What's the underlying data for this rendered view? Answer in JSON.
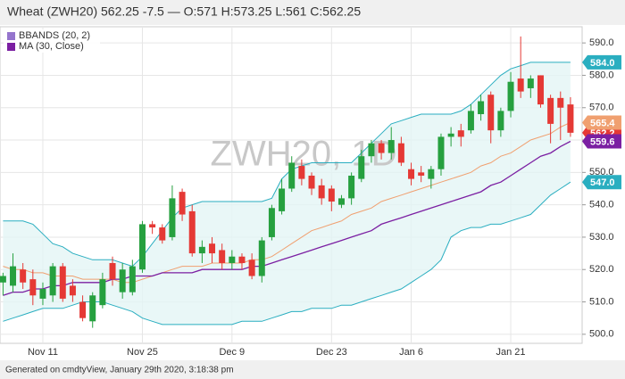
{
  "chart_data": {
    "type": "candlestick",
    "title": "Wheat (ZWH20) 562.25 -7.5 — O:571 H:573.25 L:561 C:562.25",
    "watermark": "ZWH20, 1D",
    "footer": "Generated on cmdtyView, January 29th 2020, 3:18:38 pm",
    "categories": [
      null,
      null,
      null,
      null,
      "Nov 11",
      null,
      null,
      null,
      null,
      null,
      null,
      null,
      null,
      null,
      "Nov 25",
      null,
      null,
      null,
      null,
      null,
      null,
      null,
      null,
      "Dec 9",
      null,
      null,
      null,
      null,
      null,
      null,
      null,
      null,
      null,
      "Dec 23",
      null,
      null,
      null,
      null,
      null,
      null,
      null,
      "Jan 6",
      null,
      null,
      null,
      null,
      null,
      null,
      null,
      null,
      null,
      "Jan 21",
      null,
      null,
      null,
      null,
      null,
      null
    ],
    "open": [
      516,
      515,
      520,
      517,
      511,
      512,
      521,
      515,
      510,
      504,
      509,
      522,
      513,
      513,
      520,
      534,
      533,
      530,
      544,
      538,
      525,
      528,
      526,
      522,
      524,
      523,
      518,
      530,
      538,
      545,
      552,
      549,
      546,
      545,
      540,
      542,
      548,
      555,
      559,
      556,
      559,
      551,
      550,
      548,
      551,
      561,
      563,
      563,
      568,
      574,
      563,
      569,
      579,
      576,
      580,
      573,
      573,
      571
    ],
    "high": [
      519,
      525,
      522,
      520,
      516,
      522,
      522,
      517,
      512,
      513,
      519,
      524,
      522,
      523,
      535,
      535,
      534,
      546,
      545,
      540,
      529,
      530,
      528,
      526,
      525,
      525,
      530,
      540,
      548,
      555,
      554,
      550,
      548,
      546,
      543,
      550,
      557,
      560,
      560,
      564,
      561,
      553,
      552,
      552,
      562,
      564,
      565,
      571,
      574,
      575,
      570,
      581,
      592,
      580,
      580,
      574,
      575,
      573.25
    ],
    "low": [
      512,
      513,
      514,
      509,
      509,
      510,
      510,
      510,
      504,
      502,
      508,
      515,
      511,
      512,
      519,
      531,
      528,
      529,
      535,
      524,
      522,
      522,
      520,
      520,
      520,
      517,
      516,
      529,
      537,
      544,
      546,
      543,
      540,
      538,
      539,
      540,
      547,
      553,
      554,
      554,
      552,
      546,
      547,
      545,
      549,
      558,
      558,
      562,
      566,
      559,
      561,
      567,
      573,
      573,
      570,
      559,
      560,
      561
    ],
    "close": [
      518,
      521,
      516,
      512,
      514,
      521,
      511,
      512,
      505,
      512,
      517,
      517,
      520,
      521,
      534,
      533,
      529,
      542,
      537,
      525,
      527,
      525,
      522,
      524,
      522,
      518,
      529,
      539,
      545,
      553,
      548,
      545,
      542,
      541,
      542,
      549,
      555,
      559,
      556,
      560,
      553,
      548,
      549,
      551,
      561,
      562,
      561,
      569,
      572,
      563,
      569,
      578,
      575,
      579,
      571,
      565,
      570,
      562.25
    ],
    "up_color": "#26a03f",
    "down_color": "#e53935",
    "indicators": [
      {
        "name": "BBANDS (20, 2)",
        "color": "#9575cd",
        "band_color": "#2aaec0",
        "middle_color": "#f0a070",
        "fill": "#e3f5f5",
        "upper": [
          535,
          535,
          535,
          534,
          531,
          528,
          527,
          525,
          524,
          523,
          523,
          523,
          522,
          521,
          524,
          528,
          532,
          536,
          539,
          540,
          541,
          541,
          541,
          541,
          541,
          541,
          541,
          542,
          548,
          551,
          552,
          553,
          553,
          553,
          553,
          553,
          556,
          559,
          562,
          565,
          566,
          567,
          568,
          568,
          568,
          568,
          569,
          571,
          574,
          577,
          580,
          582,
          583,
          584,
          584,
          584,
          584,
          584.0
        ],
        "middle": [
          521,
          520,
          520,
          519,
          519,
          518,
          518,
          518,
          517,
          517,
          517,
          517,
          516,
          516,
          517,
          518,
          519,
          520,
          521,
          521,
          521,
          522,
          522,
          522,
          522,
          523,
          523,
          524,
          526,
          528,
          530,
          532,
          533,
          534,
          535,
          537,
          538,
          539,
          541,
          542,
          543,
          544,
          545,
          546,
          547,
          548,
          549,
          550,
          552,
          553,
          555,
          556,
          558,
          560,
          561,
          562,
          564,
          565.4
        ],
        "lower": [
          504,
          505,
          506,
          507,
          508,
          508,
          508,
          509,
          510,
          510,
          510,
          509,
          508,
          507,
          505,
          504,
          503,
          503,
          503,
          503,
          503,
          503,
          503,
          503,
          504,
          504,
          504,
          505,
          506,
          507,
          507,
          508,
          508,
          508,
          509,
          509,
          510,
          511,
          512,
          513,
          514,
          516,
          518,
          520,
          523,
          530,
          532,
          533,
          533,
          534,
          534,
          535,
          536,
          537,
          540,
          543,
          545,
          547.0
        ]
      },
      {
        "name": "MA (30, Close)",
        "color": "#7b1fa2",
        "values": [
          512,
          513,
          513,
          514,
          514,
          515,
          515,
          516,
          516,
          516,
          516,
          517,
          517,
          518,
          518,
          518,
          519,
          519,
          519,
          519,
          520,
          520,
          520,
          520,
          520,
          521,
          521,
          522,
          523,
          524,
          525,
          526,
          527,
          528,
          529,
          530,
          531,
          532,
          534,
          535,
          536,
          537,
          538,
          539,
          540,
          541,
          542,
          543,
          544,
          546,
          547,
          549,
          551,
          553,
          555,
          556,
          558,
          559.6
        ]
      }
    ],
    "price_tags": [
      {
        "value": 562.25,
        "label": "562.2",
        "color": "#e53935"
      },
      {
        "value": 584.0,
        "label": "584.0",
        "color": "#2aaec0"
      },
      {
        "value": 565.4,
        "label": "565.4",
        "color": "#f0a070"
      },
      {
        "value": 559.6,
        "label": "559.6",
        "color": "#7b1fa2"
      },
      {
        "value": 547.0,
        "label": "547.0",
        "color": "#2aaec0"
      }
    ],
    "ylim": [
      497.2,
      595
    ],
    "yticks": [
      {
        "value": 500,
        "label": "500.0"
      },
      {
        "value": 510,
        "label": "510.0"
      },
      {
        "value": 520,
        "label": "520.0"
      },
      {
        "value": 530,
        "label": "530.0"
      },
      {
        "value": 540,
        "label": "540.0"
      },
      {
        "value": 550,
        "label": "550.0"
      },
      {
        "value": 560,
        "label": "560.0"
      },
      {
        "value": 570,
        "label": "570.0"
      },
      {
        "value": 580,
        "label": "580.0"
      },
      {
        "value": 590,
        "label": "590.0"
      }
    ],
    "grid": true
  }
}
